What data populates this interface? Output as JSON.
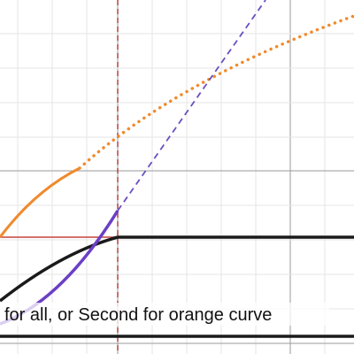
{
  "caption": {
    "text": "for all, or Second for orange curve"
  }
}
